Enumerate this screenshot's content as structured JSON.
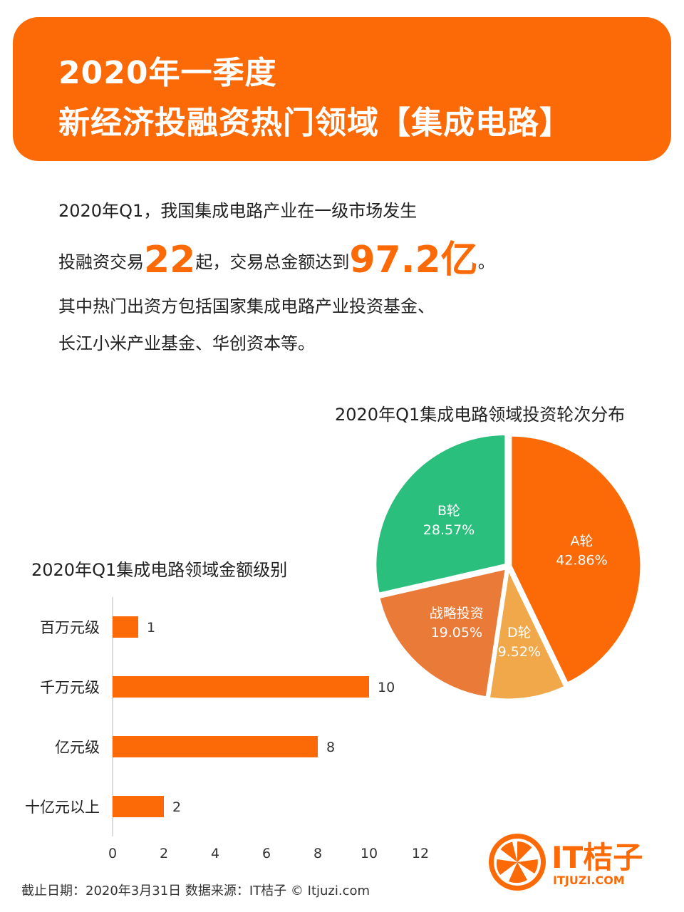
{
  "header": {
    "title_line1": "2020年一季度",
    "title_line2": "新经济投融资热门领域【集成电路】"
  },
  "intro": {
    "line1": "2020年Q1，我国集成电路产业在一级市场发生",
    "line2_pre": "投融资交易",
    "deal_count": "22",
    "line2_mid": "起，交易总金额达到",
    "total_amount": "97.2亿",
    "line2_post": "。",
    "line3": "其中热门出资方包括国家集成电路产业投资基金、",
    "line4": "长江小米产业基金、华创资本等。"
  },
  "chart_data": [
    {
      "type": "pie",
      "title": "2020年Q1集成电路领域投资轮次分布",
      "slices": [
        {
          "label": "A轮",
          "value": 42.86,
          "value_label": "42.86%",
          "color": "#fb6a07"
        },
        {
          "label": "D轮",
          "value": 9.52,
          "value_label": "9.52%",
          "color": "#f0a84a"
        },
        {
          "label": "战略投资",
          "value": 19.05,
          "value_label": "19.05%",
          "color": "#ea7a38"
        },
        {
          "label": "B轮",
          "value": 28.57,
          "value_label": "28.57%",
          "color": "#2bbf7e"
        }
      ]
    },
    {
      "type": "bar",
      "orientation": "horizontal",
      "title": "2020年Q1集成电路领域金额级别",
      "categories": [
        "百万元级",
        "千万元级",
        "亿元级",
        "十亿元以上"
      ],
      "values": [
        1,
        10,
        8,
        2
      ],
      "xlim": [
        0,
        12
      ],
      "xticks": [
        "0",
        "2",
        "4",
        "6",
        "8",
        "10",
        "12"
      ],
      "bar_color": "#fb6a07"
    }
  ],
  "footer": {
    "text": "截止日期：2020年3月31日    数据来源：IT桔子 © Itjuzi.com"
  },
  "logo": {
    "name": "IT桔子",
    "domain": "ITJUZI.COM",
    "color": "#fb6a07"
  }
}
